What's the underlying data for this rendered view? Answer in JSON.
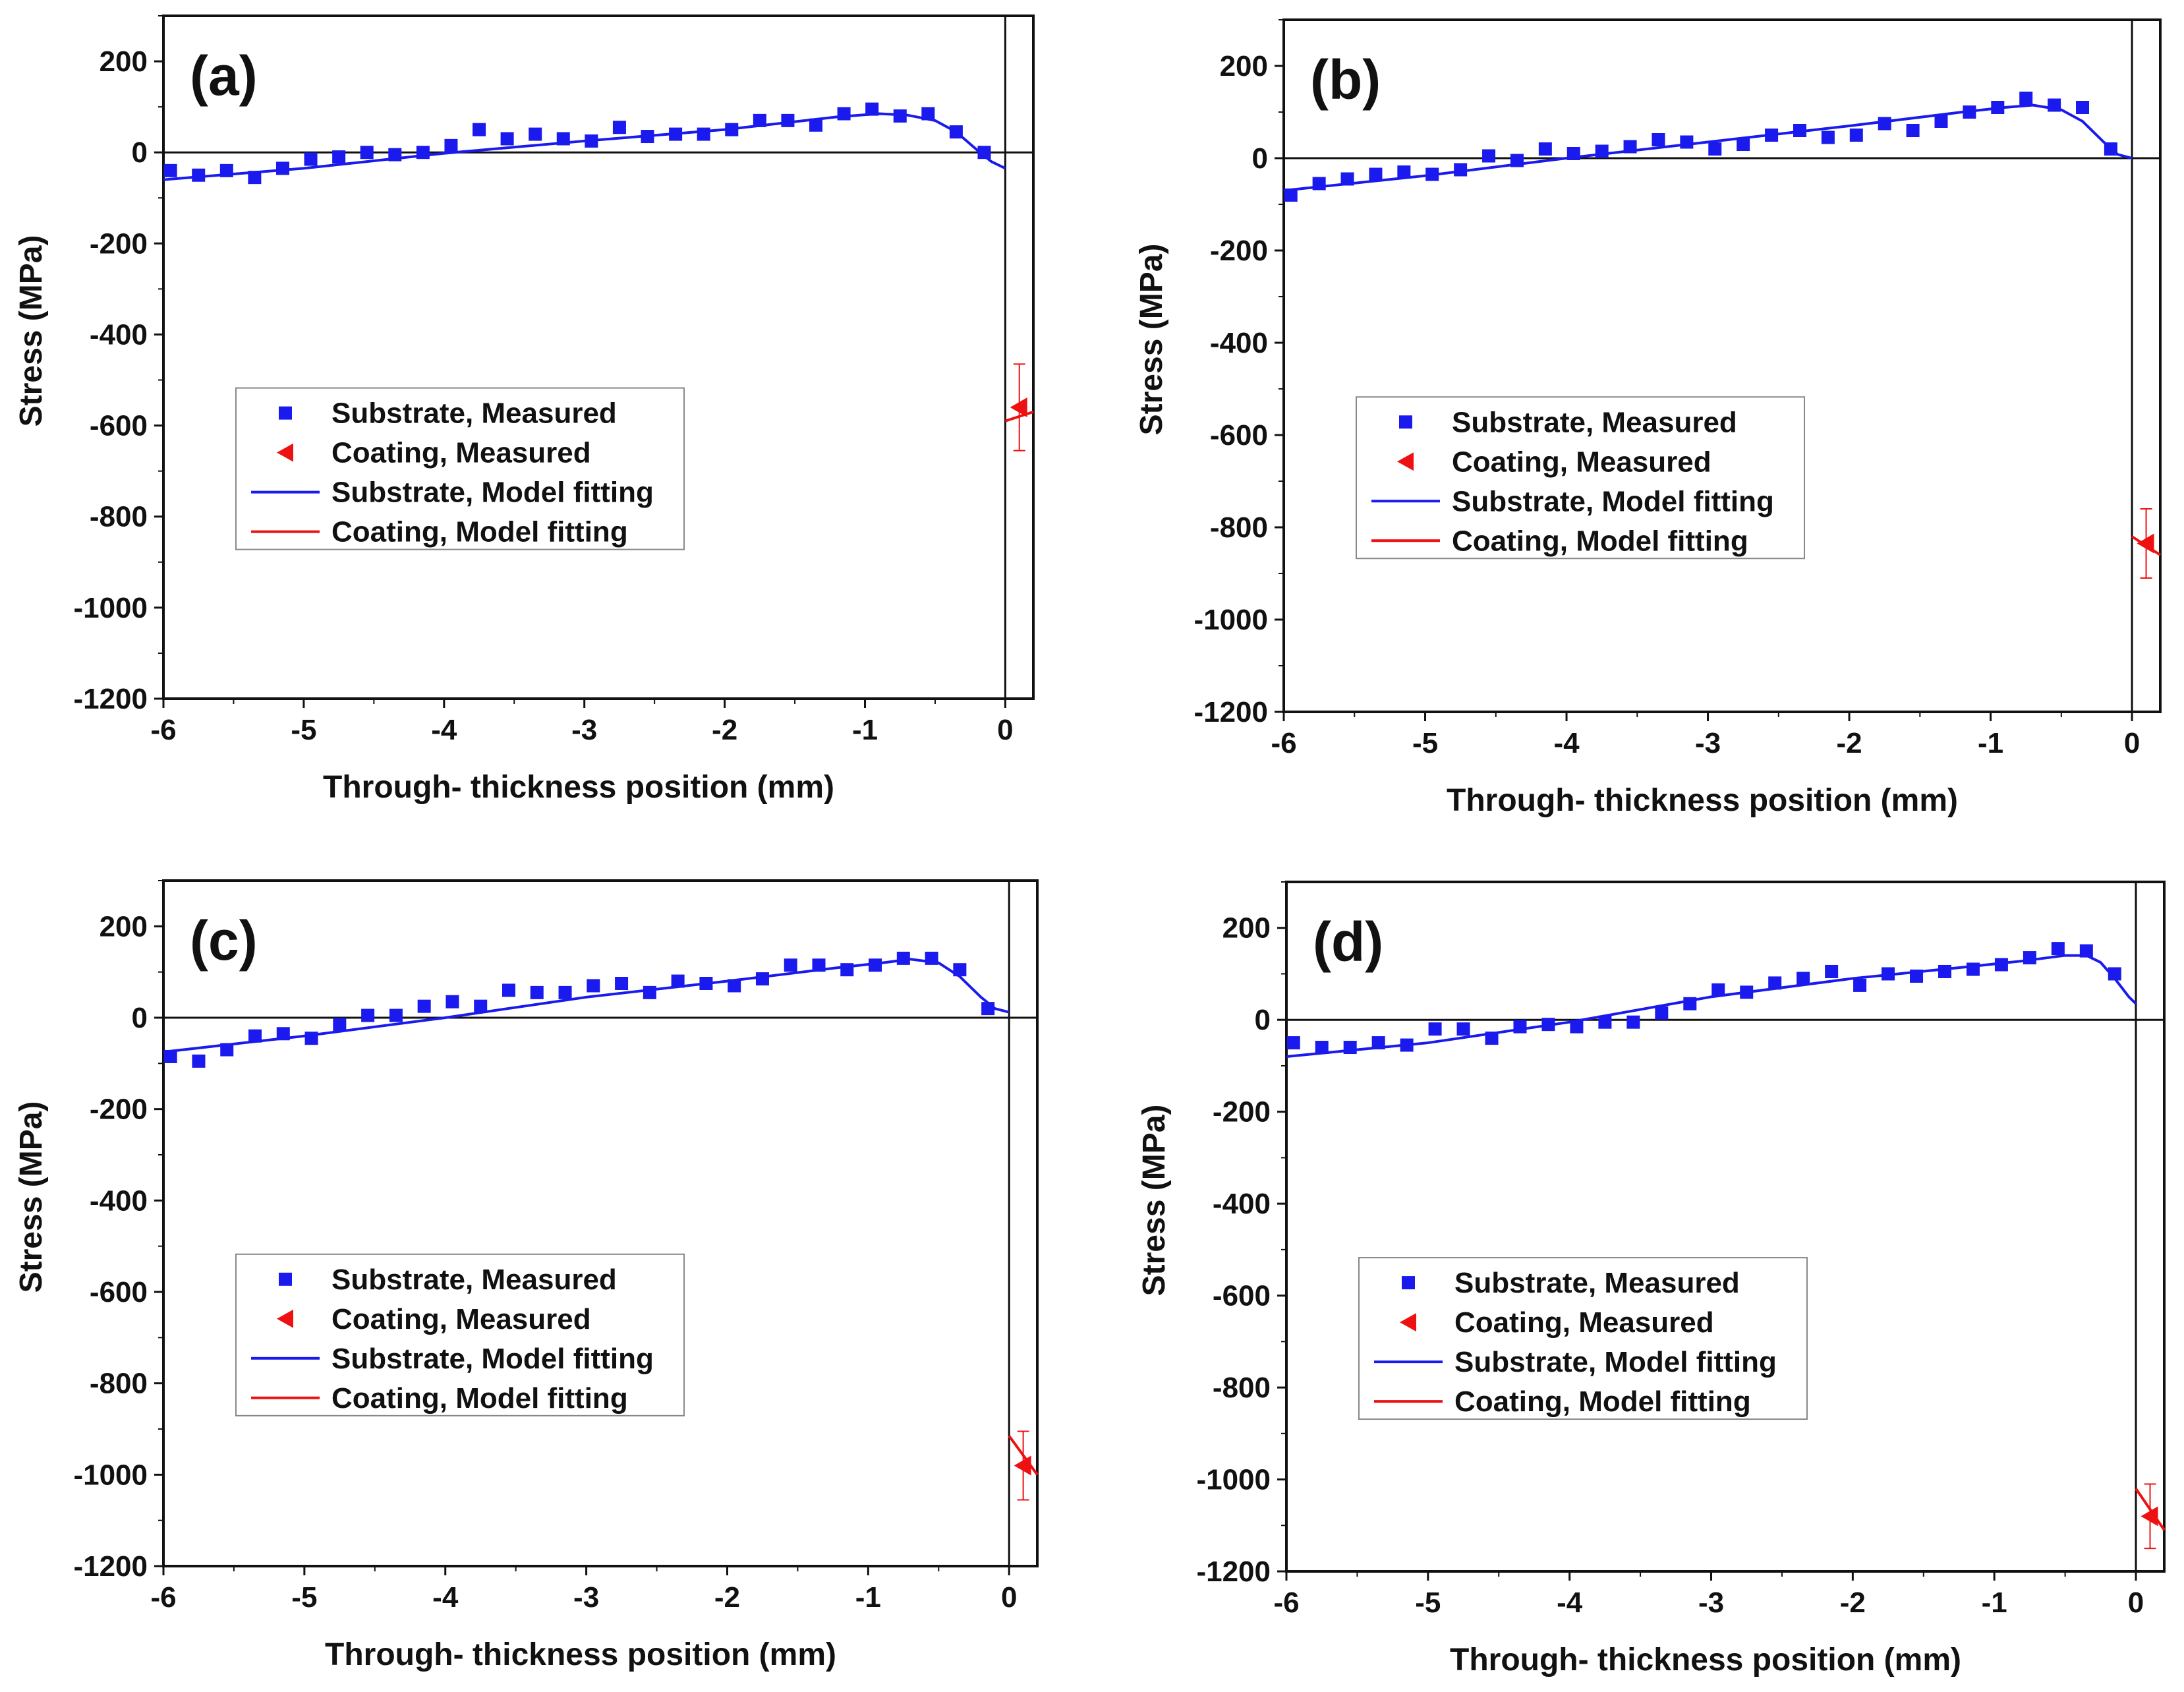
{
  "chart_data": [
    {
      "type": "scatter",
      "panel_label": "(a)",
      "xlabel": "Through- thickness position (mm)",
      "ylabel": "Stress (MPa)",
      "xlim": [
        -6,
        0.2
      ],
      "ylim": [
        -1200,
        300
      ],
      "x_ticks": [
        "-6",
        "-5",
        "-4",
        "-3",
        "-2",
        "-1",
        "0"
      ],
      "y_ticks": [
        "200",
        "0",
        "-200",
        "-400",
        "-600",
        "-800",
        "-1000",
        "-1200"
      ],
      "legend": [
        "Substrate, Measured",
        "Coating, Measured",
        "Substrate, Model fitting",
        "Coating, Model fitting"
      ],
      "substrate_measured": {
        "x": [
          -5.95,
          -5.75,
          -5.55,
          -5.35,
          -5.15,
          -4.95,
          -4.75,
          -4.55,
          -4.35,
          -4.15,
          -3.95,
          -3.75,
          -3.55,
          -3.35,
          -3.15,
          -2.95,
          -2.75,
          -2.55,
          -2.35,
          -2.15,
          -1.95,
          -1.75,
          -1.55,
          -1.35,
          -1.15,
          -0.95,
          -0.75,
          -0.55,
          -0.35,
          -0.15
        ],
        "y": [
          -40,
          -50,
          -40,
          -55,
          -35,
          -15,
          -10,
          0,
          -5,
          0,
          15,
          50,
          30,
          40,
          30,
          25,
          55,
          35,
          40,
          40,
          50,
          70,
          70,
          60,
          85,
          95,
          80,
          85,
          45,
          0
        ]
      },
      "substrate_fit": {
        "x": [
          -6,
          -5,
          -4,
          -3,
          -2,
          -1.2,
          -0.9,
          -0.7,
          -0.5,
          -0.35,
          -0.2,
          -0.1,
          0
        ],
        "y": [
          -60,
          -35,
          -2,
          25,
          50,
          78,
          85,
          82,
          70,
          45,
          5,
          -20,
          -35
        ]
      },
      "coating_measured": {
        "x": 0.1,
        "y": -560,
        "err": 95
      },
      "coating_fit": {
        "x": [
          0,
          0.2
        ],
        "y": [
          -590,
          -570
        ]
      }
    },
    {
      "type": "scatter",
      "panel_label": "(b)",
      "xlabel": "Through- thickness position (mm)",
      "ylabel": "Stress (MPa)",
      "xlim": [
        -6,
        0.2
      ],
      "ylim": [
        -1200,
        300
      ],
      "x_ticks": [
        "-6",
        "-5",
        "-4",
        "-3",
        "-2",
        "-1",
        "0"
      ],
      "y_ticks": [
        "200",
        "0",
        "-200",
        "-400",
        "-600",
        "-800",
        "-1000",
        "-1200"
      ],
      "legend": [
        "Substrate, Measured",
        "Coating, Measured",
        "Substrate, Model fitting",
        "Coating, Model fitting"
      ],
      "substrate_measured": {
        "x": [
          -5.95,
          -5.75,
          -5.55,
          -5.35,
          -5.15,
          -4.95,
          -4.75,
          -4.55,
          -4.35,
          -4.15,
          -3.95,
          -3.75,
          -3.55,
          -3.35,
          -3.15,
          -2.95,
          -2.75,
          -2.55,
          -2.35,
          -2.15,
          -1.95,
          -1.75,
          -1.55,
          -1.35,
          -1.15,
          -0.95,
          -0.75,
          -0.55,
          -0.35,
          -0.15
        ],
        "y": [
          -80,
          -55,
          -45,
          -35,
          -30,
          -35,
          -25,
          5,
          -5,
          20,
          10,
          15,
          25,
          40,
          35,
          20,
          30,
          50,
          60,
          45,
          50,
          75,
          60,
          80,
          100,
          110,
          130,
          115,
          110,
          20
        ]
      },
      "substrate_fit": {
        "x": [
          -6,
          -5,
          -4,
          -3,
          -2,
          -1.2,
          -0.9,
          -0.7,
          -0.5,
          -0.35,
          -0.2,
          -0.1,
          0
        ],
        "y": [
          -70,
          -38,
          0,
          35,
          70,
          100,
          110,
          115,
          105,
          80,
          35,
          8,
          0
        ]
      },
      "coating_measured": {
        "x": 0.1,
        "y": -835,
        "err": 75
      },
      "coating_fit": {
        "x": [
          0,
          0.2
        ],
        "y": [
          -820,
          -860
        ]
      }
    },
    {
      "type": "scatter",
      "panel_label": "(c)",
      "xlabel": "Through- thickness position (mm)",
      "ylabel": "Stress (MPa)",
      "xlim": [
        -6,
        0.2
      ],
      "ylim": [
        -1200,
        300
      ],
      "x_ticks": [
        "-6",
        "-5",
        "-4",
        "-3",
        "-2",
        "-1",
        "0"
      ],
      "y_ticks": [
        "200",
        "0",
        "-200",
        "-400",
        "-600",
        "-800",
        "-1000",
        "-1200"
      ],
      "legend": [
        "Substrate, Measured",
        "Coating, Measured",
        "Substrate, Model fitting",
        "Coating, Model fitting"
      ],
      "substrate_measured": {
        "x": [
          -5.95,
          -5.75,
          -5.55,
          -5.35,
          -5.15,
          -4.95,
          -4.75,
          -4.55,
          -4.35,
          -4.15,
          -3.95,
          -3.75,
          -3.55,
          -3.35,
          -3.15,
          -2.95,
          -2.75,
          -2.55,
          -2.35,
          -2.15,
          -1.95,
          -1.75,
          -1.55,
          -1.35,
          -1.15,
          -0.95,
          -0.75,
          -0.55,
          -0.35,
          -0.15
        ],
        "y": [
          -85,
          -95,
          -70,
          -40,
          -35,
          -45,
          -15,
          5,
          5,
          25,
          35,
          25,
          60,
          55,
          55,
          70,
          75,
          55,
          80,
          75,
          70,
          85,
          115,
          115,
          105,
          115,
          130,
          130,
          105,
          20
        ]
      },
      "substrate_fit": {
        "x": [
          -6,
          -5,
          -4,
          -3,
          -2,
          -1.2,
          -0.9,
          -0.7,
          -0.5,
          -0.35,
          -0.2,
          -0.1,
          0
        ],
        "y": [
          -75,
          -40,
          0,
          45,
          80,
          110,
          120,
          128,
          120,
          90,
          45,
          20,
          12
        ]
      },
      "coating_measured": {
        "x": 0.1,
        "y": -980,
        "err": 75
      },
      "coating_fit": {
        "x": [
          0,
          0.2
        ],
        "y": [
          -915,
          -1000
        ]
      }
    },
    {
      "type": "scatter",
      "panel_label": "(d)",
      "xlabel": "Through- thickness position (mm)",
      "ylabel": "Stress (MPa)",
      "xlim": [
        -6,
        0.2
      ],
      "ylim": [
        -1200,
        300
      ],
      "x_ticks": [
        "-6",
        "-5",
        "-4",
        "-3",
        "-2",
        "-1",
        "0"
      ],
      "y_ticks": [
        "200",
        "0",
        "-200",
        "-400",
        "-600",
        "-800",
        "-1000",
        "-1200"
      ],
      "legend": [
        "Substrate, Measured",
        "Coating, Measured",
        "Substrate, Model fitting",
        "Coating, Model fitting"
      ],
      "substrate_measured": {
        "x": [
          -5.95,
          -5.75,
          -5.55,
          -5.35,
          -5.15,
          -4.95,
          -4.75,
          -4.55,
          -4.35,
          -4.15,
          -3.95,
          -3.75,
          -3.55,
          -3.35,
          -3.15,
          -2.95,
          -2.75,
          -2.55,
          -2.35,
          -2.15,
          -1.95,
          -1.75,
          -1.55,
          -1.35,
          -1.15,
          -0.95,
          -0.75,
          -0.55,
          -0.35,
          -0.15
        ],
        "y": [
          -50,
          -60,
          -60,
          -50,
          -55,
          -20,
          -20,
          -40,
          -15,
          -10,
          -15,
          -5,
          -5,
          15,
          35,
          65,
          60,
          80,
          90,
          105,
          75,
          100,
          95,
          105,
          110,
          120,
          135,
          155,
          150,
          100
        ]
      },
      "substrate_fit": {
        "x": [
          -6,
          -5,
          -4,
          -3,
          -2,
          -1.2,
          -0.8,
          -0.5,
          -0.35,
          -0.25,
          -0.15,
          -0.05,
          0
        ],
        "y": [
          -80,
          -50,
          -5,
          50,
          90,
          115,
          128,
          140,
          140,
          125,
          90,
          50,
          35
        ]
      },
      "coating_measured": {
        "x": 0.1,
        "y": -1080,
        "err": 70
      },
      "coating_fit": {
        "x": [
          0,
          0.2
        ],
        "y": [
          -1020,
          -1110
        ]
      }
    }
  ],
  "colors": {
    "substrate": "#1a1aee",
    "coating": "#ee1111",
    "axis": "#111111"
  }
}
